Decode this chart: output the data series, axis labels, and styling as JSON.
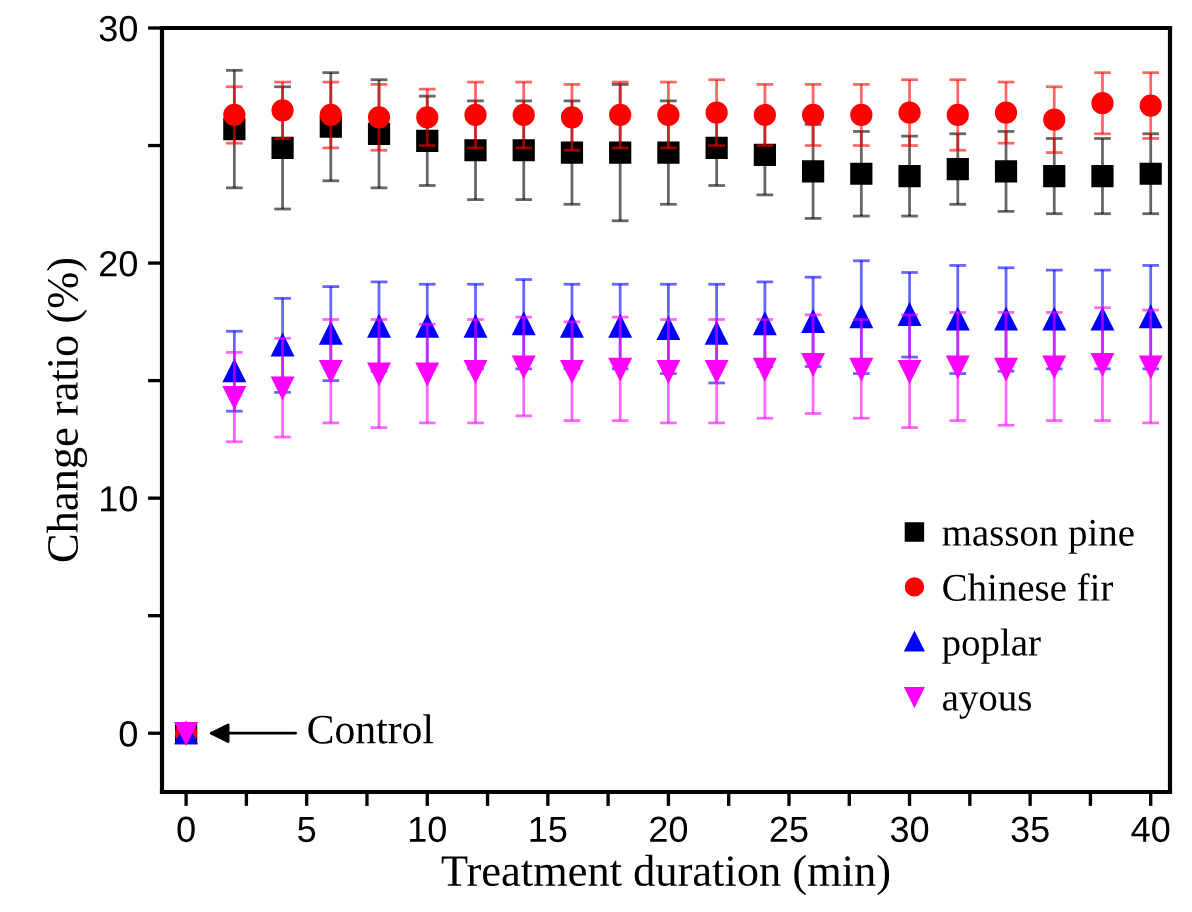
{
  "chart_data": {
    "type": "scatter",
    "xlabel": "Treatment duration (min)",
    "ylabel": "Change ratio (%)",
    "x": [
      0,
      2,
      4,
      6,
      8,
      10,
      12,
      14,
      16,
      18,
      20,
      22,
      24,
      26,
      28,
      30,
      32,
      34,
      36,
      38,
      40
    ],
    "xlim": [
      -1,
      40.8
    ],
    "ylim": [
      -2.5,
      30
    ],
    "xticks": [
      0,
      {
        "value": 2.5,
        "label": null
      },
      5,
      {
        "value": 7.5,
        "label": null
      },
      10,
      {
        "value": 12.5,
        "label": null
      },
      15,
      {
        "value": 17.5,
        "label": null
      },
      20,
      {
        "value": 22.5,
        "label": null
      },
      25,
      {
        "value": 27.5,
        "label": null
      },
      30,
      {
        "value": 32.5,
        "label": null
      },
      35,
      {
        "value": 37.5,
        "label": null
      },
      40
    ],
    "yticks": [
      0,
      {
        "value": 5,
        "label": null
      },
      10,
      {
        "value": 15,
        "label": null
      },
      20,
      {
        "value": 25,
        "label": null
      },
      30
    ],
    "grid": false,
    "legend": "bottom right",
    "series": [
      {
        "name": "masson pine",
        "color": "#000000",
        "marker": "square",
        "values": [
          0,
          25.7,
          24.9,
          25.8,
          25.5,
          25.2,
          24.8,
          24.8,
          24.7,
          24.7,
          24.7,
          24.9,
          24.6,
          23.9,
          23.8,
          23.7,
          24.0,
          23.9,
          23.7,
          23.7,
          23.8
        ],
        "errors": [
          null,
          2.5,
          2.6,
          2.3,
          2.3,
          1.9,
          2.1,
          2.1,
          2.2,
          2.9,
          2.2,
          1.6,
          1.7,
          2.0,
          1.8,
          1.7,
          1.5,
          1.7,
          1.6,
          1.6,
          1.7
        ]
      },
      {
        "name": "Chinese fir",
        "color": "#ff0000",
        "marker": "circle",
        "values": [
          0,
          26.3,
          26.5,
          26.3,
          26.2,
          26.2,
          26.3,
          26.3,
          26.2,
          26.3,
          26.3,
          26.4,
          26.3,
          26.3,
          26.3,
          26.4,
          26.3,
          26.4,
          26.1,
          26.8,
          26.7
        ],
        "errors": [
          null,
          1.2,
          1.2,
          1.4,
          1.4,
          1.2,
          1.4,
          1.4,
          1.4,
          1.4,
          1.4,
          1.4,
          1.3,
          1.3,
          1.3,
          1.4,
          1.5,
          1.3,
          1.4,
          1.3,
          1.4
        ]
      },
      {
        "name": "poplar",
        "color": "#0000ff",
        "marker": "triangle",
        "values": [
          0,
          15.4,
          16.5,
          17.0,
          17.3,
          17.3,
          17.3,
          17.4,
          17.3,
          17.3,
          17.2,
          17.0,
          17.4,
          17.5,
          17.7,
          17.8,
          17.6,
          17.6,
          17.6,
          17.6,
          17.7
        ],
        "errors": [
          null,
          1.7,
          2.0,
          2.0,
          1.9,
          1.8,
          1.8,
          1.9,
          1.8,
          1.8,
          1.9,
          2.1,
          1.8,
          1.9,
          2.4,
          1.8,
          2.3,
          2.2,
          2.1,
          2.1,
          2.2
        ]
      },
      {
        "name": "ayous",
        "color": "#ff00ff",
        "marker": "triangle_down",
        "values": [
          0,
          14.3,
          14.7,
          15.4,
          15.3,
          15.3,
          15.4,
          15.6,
          15.4,
          15.5,
          15.4,
          15.4,
          15.5,
          15.7,
          15.5,
          15.4,
          15.6,
          15.5,
          15.6,
          15.7,
          15.6
        ],
        "errors": [
          null,
          1.9,
          2.1,
          2.2,
          2.3,
          2.1,
          2.2,
          2.1,
          2.1,
          2.2,
          2.2,
          2.2,
          2.1,
          2.1,
          2.1,
          2.4,
          2.3,
          2.4,
          2.3,
          2.4,
          2.4
        ]
      }
    ],
    "annotations": [
      {
        "text": "Control",
        "x": 0,
        "y": 0
      }
    ]
  }
}
